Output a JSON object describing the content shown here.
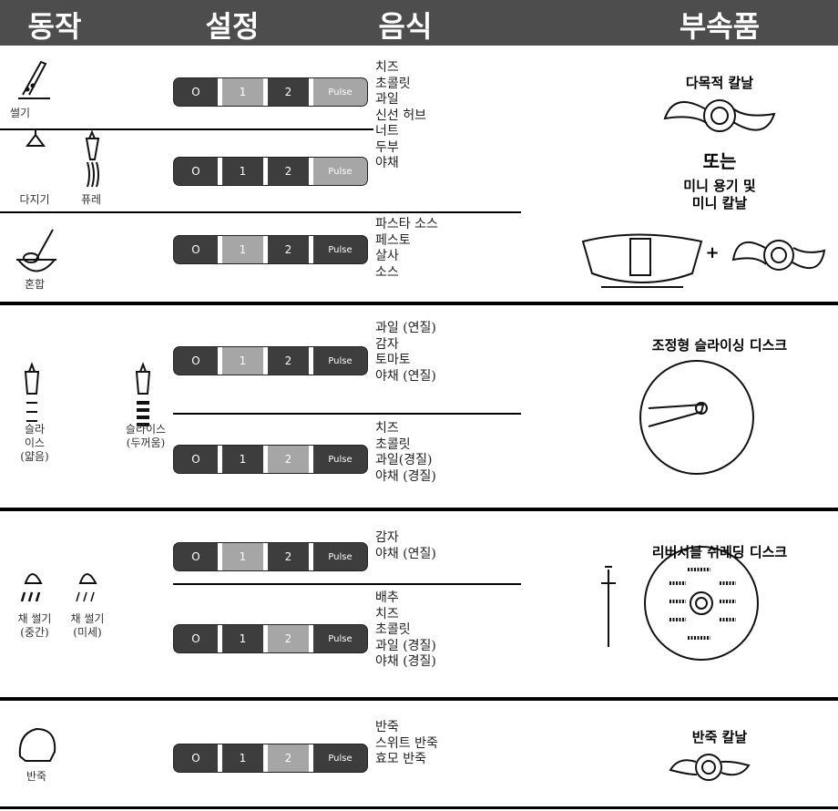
{
  "header": {
    "columns": [
      "동작",
      "설정",
      "음식",
      "부속품"
    ]
  },
  "sections": [
    {
      "actions": [
        [
          "썰기"
        ],
        [
          "다지기"
        ],
        [
          "퓨레"
        ],
        [
          "혼합"
        ]
      ],
      "controls": [
        {
          "buttons": [
            "O",
            "1",
            "2",
            "Pulse"
          ],
          "active": [
            "1",
            "Pulse"
          ]
        },
        {
          "buttons": [
            "O",
            "1",
            "2",
            "Pulse"
          ],
          "active": [
            "Pulse"
          ]
        },
        {
          "buttons": [
            "O",
            "1",
            "2",
            "Pulse"
          ],
          "active": [
            "1"
          ]
        }
      ],
      "foods": [
        [
          "치즈",
          "초콜릿",
          "과일",
          "신선 허브",
          "너트",
          "두부",
          "야채"
        ],
        [
          "파스타 소스",
          "페스토",
          "살사",
          "소스"
        ]
      ],
      "accessory": {
        "title": "다목적 칼날",
        "or": "또는",
        "title2": [
          "미니 용기 및",
          "미니 칼날"
        ],
        "plus": "+"
      }
    },
    {
      "actions": [
        [
          "슬라",
          "이스",
          "(얇음)"
        ],
        [
          "슬라이스",
          "(두꺼움)"
        ]
      ],
      "controls": [
        {
          "buttons": [
            "O",
            "1",
            "2",
            "Pulse"
          ],
          "active": [
            "1"
          ]
        },
        {
          "buttons": [
            "O",
            "1",
            "2",
            "Pulse"
          ],
          "active": [
            "2"
          ]
        }
      ],
      "foods": [
        [
          "과일 (연질)",
          "감자",
          "토마토",
          "야채 (연질)"
        ],
        [
          "치즈",
          "초콜릿",
          "과일(경질)",
          "야채 (경질)"
        ]
      ],
      "accessory": {
        "title": "조정형 슬라이싱 디스크"
      }
    },
    {
      "actions": [
        [
          "채 썰기",
          "(중간)"
        ],
        [
          "채 썰기",
          "(미세)"
        ]
      ],
      "controls": [
        {
          "buttons": [
            "O",
            "1",
            "2",
            "Pulse"
          ],
          "active": [
            "1"
          ]
        },
        {
          "buttons": [
            "O",
            "1",
            "2",
            "Pulse"
          ],
          "active": [
            "2"
          ]
        }
      ],
      "foods": [
        [
          "감자",
          "야채 (연질)"
        ],
        [
          "배추",
          "치즈",
          "초콜릿",
          "과일 (경질)",
          "야채 (경질)"
        ]
      ],
      "accessory": {
        "title": "리버서블 쉬레딩 디스크"
      }
    },
    {
      "actions": [
        [
          "반죽"
        ]
      ],
      "controls": [
        {
          "buttons": [
            "O",
            "1",
            "2",
            "Pulse"
          ],
          "active": [
            "2"
          ]
        }
      ],
      "foods": [
        [
          "반죽",
          "스위트 반죽",
          "효모 반죽"
        ]
      ],
      "accessory": {
        "title": "반죽 칼날"
      }
    }
  ]
}
